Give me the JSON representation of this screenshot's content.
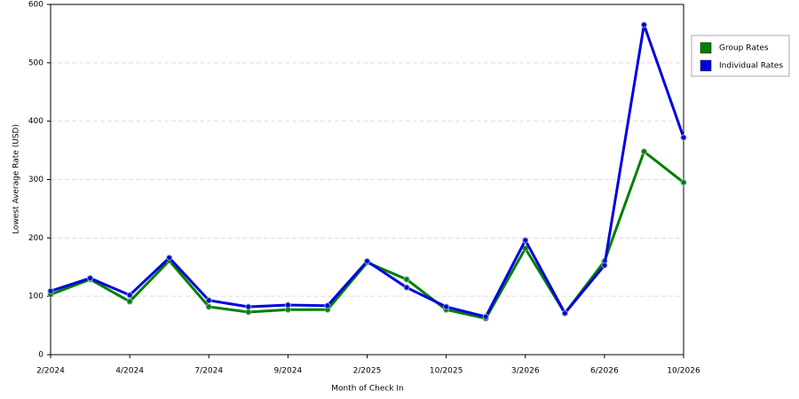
{
  "chart_data": {
    "type": "line",
    "x_label": "Month of Check In",
    "y_label": "Lowest Average Rate (USD)",
    "categories": [
      "2/2024",
      null,
      "4/2024",
      null,
      "7/2024",
      null,
      "9/2024",
      null,
      "2/2025",
      null,
      "10/2025",
      null,
      "3/2026",
      null,
      "6/2026",
      null,
      "10/2026"
    ],
    "series": [
      {
        "name": "Group Rates",
        "color": "#007f00",
        "values": [
          103,
          129,
          91,
          161,
          82,
          73,
          77,
          77,
          158,
          129,
          77,
          62,
          182,
          71,
          160,
          348,
          295
        ]
      },
      {
        "name": "Individual Rates",
        "color": "#0000e0",
        "values": [
          109,
          131,
          102,
          166,
          93,
          82,
          85,
          84,
          160,
          115,
          82,
          65,
          196,
          71,
          153,
          565,
          372
        ]
      }
    ],
    "ylim": [
      0,
      600
    ],
    "yticks": [
      0,
      100,
      200,
      300,
      400,
      500,
      600
    ],
    "grid": true,
    "legend": "right"
  }
}
